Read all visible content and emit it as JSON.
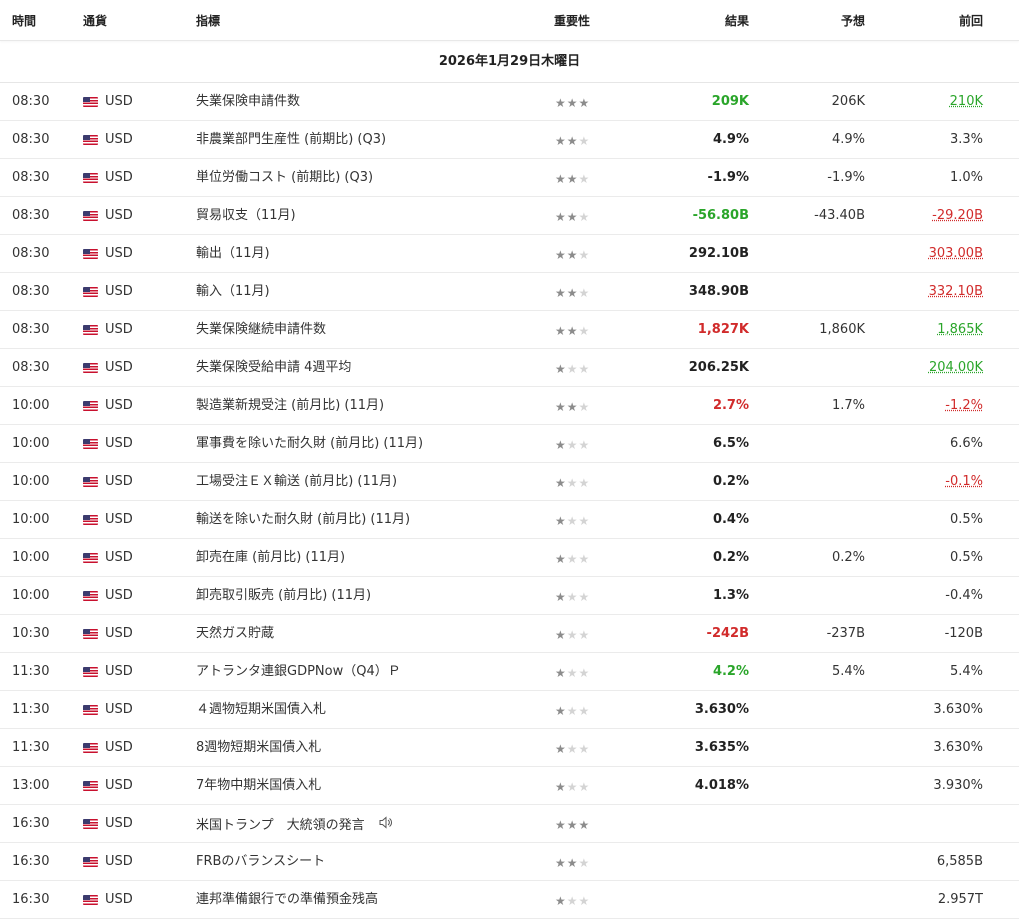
{
  "header": {
    "time": "時間",
    "currency": "通貨",
    "indicator": "指標",
    "importance": "重要性",
    "actual": "結果",
    "forecast": "予想",
    "previous": "前回"
  },
  "date_label": "2026年1月29日木曜日",
  "colors": {
    "positive": "#2aa52a",
    "negative": "#d12b2b",
    "star_active": "#8c8c8c",
    "star_inactive": "#d4d4d4",
    "flag_icon": "us-flag-icon"
  },
  "rows": [
    {
      "time": "08:30",
      "currency": "USD",
      "indicator": "失業保険申請件数",
      "stars": 3,
      "actual": "209K",
      "actual_style": "green",
      "forecast": "206K",
      "previous": "210K",
      "previous_style": "u-green"
    },
    {
      "time": "08:30",
      "currency": "USD",
      "indicator": "非農業部門生産性 (前期比) (Q3)",
      "stars": 2,
      "actual": "4.9%",
      "actual_style": "",
      "forecast": "4.9%",
      "previous": "3.3%",
      "previous_style": ""
    },
    {
      "time": "08:30",
      "currency": "USD",
      "indicator": "単位労働コスト (前期比) (Q3)",
      "stars": 2,
      "actual": "-1.9%",
      "actual_style": "",
      "forecast": "-1.9%",
      "previous": "1.0%",
      "previous_style": ""
    },
    {
      "time": "08:30",
      "currency": "USD",
      "indicator": "貿易収支（11月)",
      "stars": 2,
      "actual": "-56.80B",
      "actual_style": "green",
      "forecast": "-43.40B",
      "previous": "-29.20B",
      "previous_style": "u-red"
    },
    {
      "time": "08:30",
      "currency": "USD",
      "indicator": "輸出（11月)",
      "stars": 2,
      "actual": "292.10B",
      "actual_style": "",
      "forecast": "",
      "previous": "303.00B",
      "previous_style": "u-red"
    },
    {
      "time": "08:30",
      "currency": "USD",
      "indicator": "輸入（11月)",
      "stars": 2,
      "actual": "348.90B",
      "actual_style": "",
      "forecast": "",
      "previous": "332.10B",
      "previous_style": "u-red"
    },
    {
      "time": "08:30",
      "currency": "USD",
      "indicator": "失業保険継続申請件数",
      "stars": 2,
      "actual": "1,827K",
      "actual_style": "red",
      "forecast": "1,860K",
      "previous": "1,865K",
      "previous_style": "u-green"
    },
    {
      "time": "08:30",
      "currency": "USD",
      "indicator": "失業保険受給申請 4週平均",
      "stars": 1,
      "actual": "206.25K",
      "actual_style": "",
      "forecast": "",
      "previous": "204.00K",
      "previous_style": "u-green"
    },
    {
      "time": "10:00",
      "currency": "USD",
      "indicator": "製造業新規受注 (前月比) (11月)",
      "stars": 2,
      "actual": "2.7%",
      "actual_style": "red",
      "forecast": "1.7%",
      "previous": "-1.2%",
      "previous_style": "u-red"
    },
    {
      "time": "10:00",
      "currency": "USD",
      "indicator": "軍事費を除いた耐久財 (前月比) (11月)",
      "stars": 1,
      "actual": "6.5%",
      "actual_style": "",
      "forecast": "",
      "previous": "6.6%",
      "previous_style": ""
    },
    {
      "time": "10:00",
      "currency": "USD",
      "indicator": "工場受注ＥＸ輸送 (前月比) (11月)",
      "stars": 1,
      "actual": "0.2%",
      "actual_style": "",
      "forecast": "",
      "previous": "-0.1%",
      "previous_style": "u-red"
    },
    {
      "time": "10:00",
      "currency": "USD",
      "indicator": "輸送を除いた耐久財 (前月比) (11月)",
      "stars": 1,
      "actual": "0.4%",
      "actual_style": "",
      "forecast": "",
      "previous": "0.5%",
      "previous_style": ""
    },
    {
      "time": "10:00",
      "currency": "USD",
      "indicator": "卸売在庫 (前月比) (11月)",
      "stars": 1,
      "actual": "0.2%",
      "actual_style": "",
      "forecast": "0.2%",
      "previous": "0.5%",
      "previous_style": ""
    },
    {
      "time": "10:00",
      "currency": "USD",
      "indicator": "卸売取引販売 (前月比) (11月)",
      "stars": 1,
      "actual": "1.3%",
      "actual_style": "",
      "forecast": "",
      "previous": "-0.4%",
      "previous_style": ""
    },
    {
      "time": "10:30",
      "currency": "USD",
      "indicator": "天然ガス貯蔵",
      "stars": 1,
      "actual": "-242B",
      "actual_style": "red",
      "forecast": "-237B",
      "previous": "-120B",
      "previous_style": ""
    },
    {
      "time": "11:30",
      "currency": "USD",
      "indicator": "アトランタ連銀GDPNow（Q4）Ｐ",
      "stars": 1,
      "actual": "4.2%",
      "actual_style": "green",
      "forecast": "5.4%",
      "previous": "5.4%",
      "previous_style": ""
    },
    {
      "time": "11:30",
      "currency": "USD",
      "indicator": "４週物短期米国債入札",
      "stars": 1,
      "actual": "3.630%",
      "actual_style": "",
      "forecast": "",
      "previous": "3.630%",
      "previous_style": ""
    },
    {
      "time": "11:30",
      "currency": "USD",
      "indicator": "8週物短期米国債入札",
      "stars": 1,
      "actual": "3.635%",
      "actual_style": "",
      "forecast": "",
      "previous": "3.630%",
      "previous_style": ""
    },
    {
      "time": "13:00",
      "currency": "USD",
      "indicator": "7年物中期米国債入札",
      "stars": 1,
      "actual": "4.018%",
      "actual_style": "",
      "forecast": "",
      "previous": "3.930%",
      "previous_style": ""
    },
    {
      "time": "16:30",
      "currency": "USD",
      "indicator": "米国トランプ　大統領の発言",
      "stars": 3,
      "actual": "",
      "actual_style": "",
      "forecast": "",
      "previous": "",
      "previous_style": "",
      "speaker_icon": "speaker-icon"
    },
    {
      "time": "16:30",
      "currency": "USD",
      "indicator": "FRBのバランスシート",
      "stars": 2,
      "actual": "",
      "actual_style": "",
      "forecast": "",
      "previous": "6,585B",
      "previous_style": ""
    },
    {
      "time": "16:30",
      "currency": "USD",
      "indicator": "連邦準備銀行での準備預金残高",
      "stars": 1,
      "actual": "",
      "actual_style": "",
      "forecast": "",
      "previous": "2.957T",
      "previous_style": ""
    }
  ]
}
